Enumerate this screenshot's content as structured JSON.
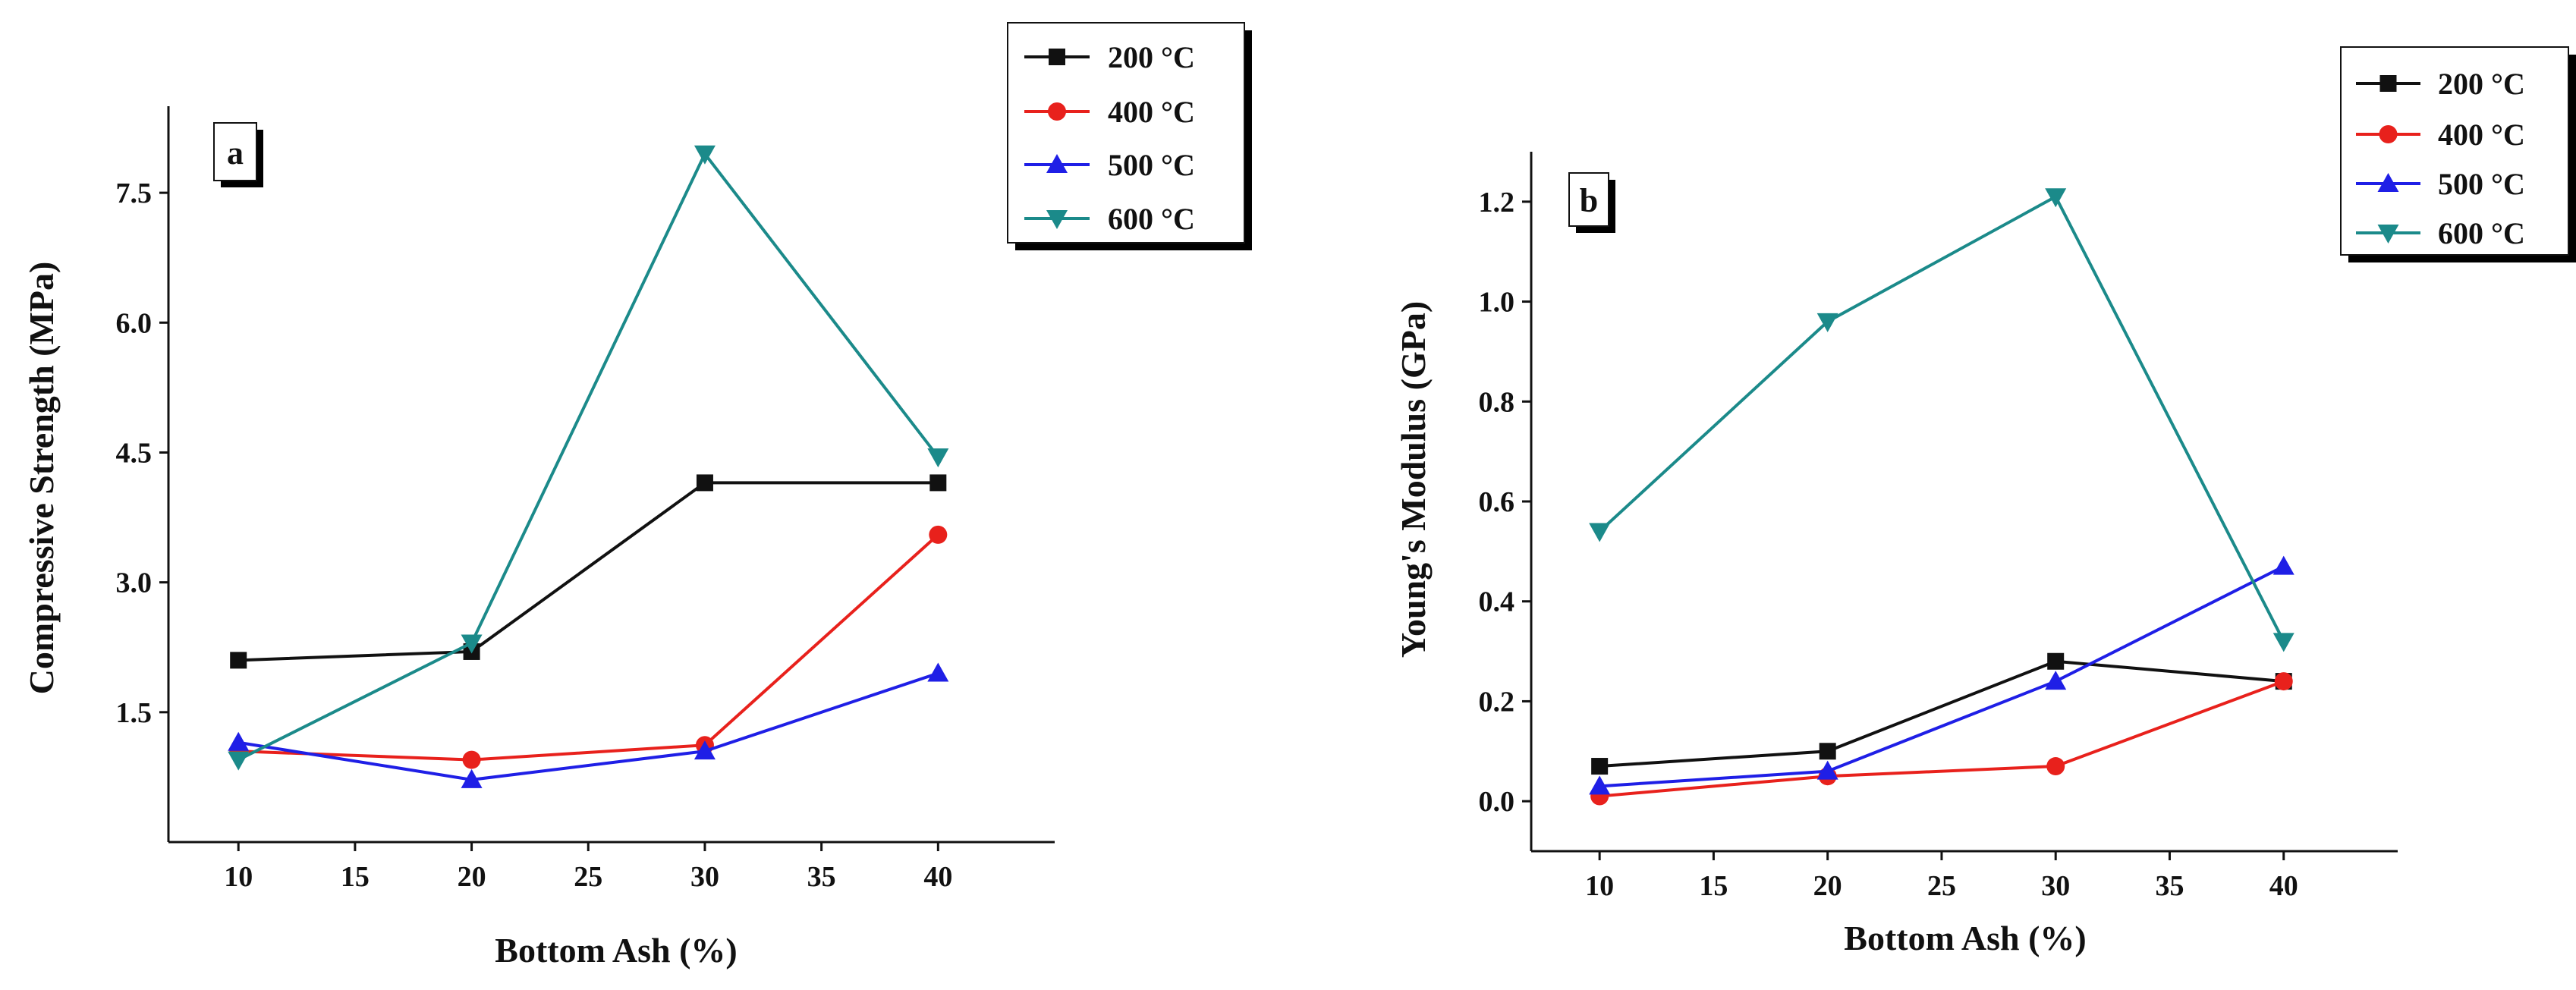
{
  "chart_data": [
    {
      "type": "line",
      "panel_label": "a",
      "title": "",
      "xlabel": "Bottom Ash (%)",
      "ylabel": "Compressive Strength (MPa)",
      "x": [
        10,
        20,
        30,
        40
      ],
      "xlim": [
        7,
        45
      ],
      "ylim": [
        0,
        8.5
      ],
      "xticks": [
        "10",
        "15",
        "20",
        "25",
        "30",
        "35",
        "40"
      ],
      "xtick_values": [
        10,
        15,
        20,
        25,
        30,
        35,
        40
      ],
      "yticks": [
        "1.5",
        "3.0",
        "4.5",
        "6.0",
        "7.5"
      ],
      "ytick_values": [
        1.5,
        3.0,
        4.5,
        6.0,
        7.5
      ],
      "legend_position": "top-right",
      "series": [
        {
          "name": "200 °C",
          "color": "#111111",
          "marker": "square",
          "values": [
            2.1,
            2.2,
            4.15,
            4.15
          ]
        },
        {
          "name": "400 °C",
          "color": "#e8211c",
          "marker": "circle",
          "values": [
            1.05,
            0.95,
            1.12,
            3.55
          ]
        },
        {
          "name": "500 °C",
          "color": "#1f1fe6",
          "marker": "triangle-up",
          "values": [
            1.15,
            0.72,
            1.05,
            1.95
          ]
        },
        {
          "name": "600 °C",
          "color": "#1b8a8a",
          "marker": "triangle-down",
          "values": [
            0.95,
            2.3,
            7.95,
            4.45
          ]
        }
      ]
    },
    {
      "type": "line",
      "panel_label": "b",
      "title": "",
      "xlabel": "Bottom Ash (%)",
      "ylabel": "Young's Modulus (GPa)",
      "x": [
        10,
        20,
        30,
        40
      ],
      "xlim": [
        7,
        45
      ],
      "ylim": [
        -0.1,
        1.3
      ],
      "xticks": [
        "10",
        "15",
        "20",
        "25",
        "30",
        "35",
        "40"
      ],
      "xtick_values": [
        10,
        15,
        20,
        25,
        30,
        35,
        40
      ],
      "yticks": [
        "0.0",
        "0.2",
        "0.4",
        "0.6",
        "0.8",
        "1.0",
        "1.2"
      ],
      "ytick_values": [
        0.0,
        0.2,
        0.4,
        0.6,
        0.8,
        1.0,
        1.2
      ],
      "legend_position": "top-right",
      "series": [
        {
          "name": "200 °C",
          "color": "#111111",
          "marker": "square",
          "values": [
            0.07,
            0.1,
            0.28,
            0.24
          ]
        },
        {
          "name": "400 °C",
          "color": "#e8211c",
          "marker": "circle",
          "values": [
            0.01,
            0.05,
            0.07,
            0.24
          ]
        },
        {
          "name": "500 °C",
          "color": "#1f1fe6",
          "marker": "triangle-up",
          "values": [
            0.03,
            0.06,
            0.24,
            0.47
          ]
        },
        {
          "name": "600 °C",
          "color": "#1b8a8a",
          "marker": "triangle-down",
          "values": [
            0.54,
            0.96,
            1.21,
            0.32
          ]
        }
      ]
    }
  ]
}
